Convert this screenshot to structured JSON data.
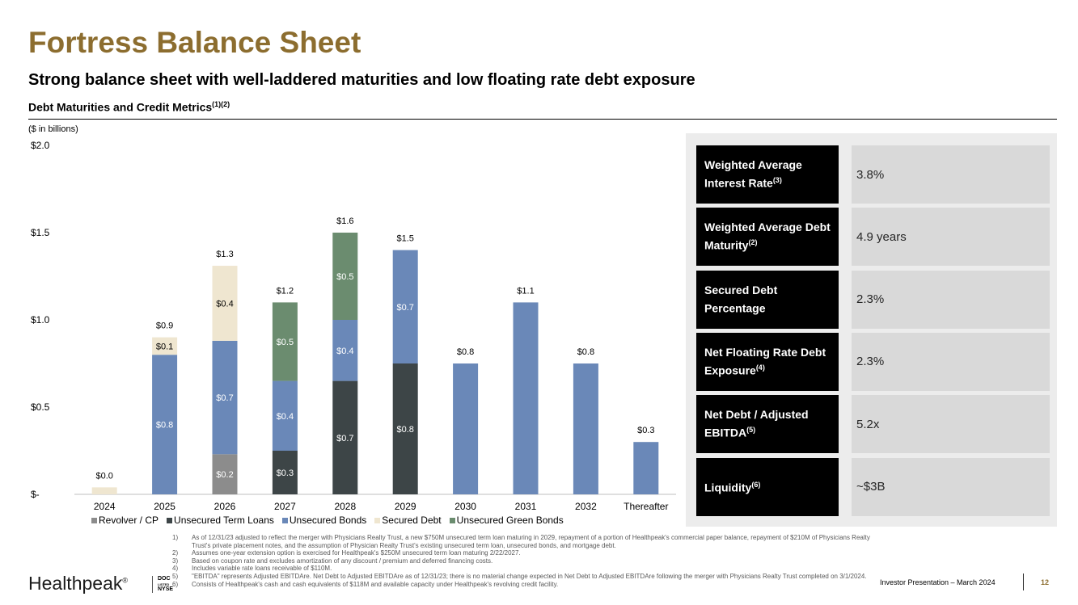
{
  "header": {
    "title": "Fortress Balance Sheet",
    "subtitle": "Strong balance sheet with well-laddered maturities and low floating rate debt exposure",
    "section": "Debt Maturities and Credit Metrics",
    "section_sup": "(1)(2)",
    "units": "($ in billions)"
  },
  "colors": {
    "accent": "#8c6d2f",
    "revolver": "#8c8c8c",
    "term_loans": "#3d4547",
    "bonds": "#6a88b8",
    "secured": "#efe6d0",
    "green_bonds": "#6b8c6f"
  },
  "chart_data": {
    "type": "bar",
    "stacked": true,
    "title": "Debt Maturities",
    "ylabel": "$ in billions",
    "ylim": [
      0,
      2.0
    ],
    "yticks": [
      {
        "value": 0,
        "label": "$-"
      },
      {
        "value": 0.5,
        "label": "$0.5"
      },
      {
        "value": 1.0,
        "label": "$1.0"
      },
      {
        "value": 1.5,
        "label": "$1.5"
      },
      {
        "value": 2.0,
        "label": "$2.0"
      }
    ],
    "categories": [
      "2024",
      "2025",
      "2026",
      "2027",
      "2028",
      "2029",
      "2030",
      "2031",
      "2032",
      "Thereafter"
    ],
    "totals": [
      "$0.0",
      "$0.9",
      "$1.3",
      "$1.2",
      "$1.6",
      "$1.5",
      "$0.8",
      "$1.1",
      "$0.8",
      "$0.3"
    ],
    "series": [
      {
        "name": "Revolver / CP",
        "color": "#8c8c8c",
        "values": [
          0,
          0,
          0.23,
          0,
          0,
          0,
          0,
          0,
          0,
          0
        ],
        "labels": [
          "",
          "",
          "$0.2",
          "",
          "",
          "",
          "",
          "",
          "",
          ""
        ]
      },
      {
        "name": "Unsecured Term Loans",
        "color": "#3d4547",
        "values": [
          0,
          0,
          0,
          0.25,
          0.65,
          0.75,
          0,
          0,
          0,
          0
        ],
        "labels": [
          "",
          "",
          "",
          "$0.3",
          "$0.7",
          "$0.8",
          "",
          "",
          "",
          ""
        ]
      },
      {
        "name": "Unsecured Bonds",
        "color": "#6a88b8",
        "values": [
          0,
          0.8,
          0.65,
          0.4,
          0.35,
          0.65,
          0.75,
          1.1,
          0.75,
          0.3
        ],
        "labels": [
          "",
          "$0.8",
          "$0.7",
          "$0.4",
          "$0.4",
          "$0.7",
          "",
          "",
          "",
          ""
        ]
      },
      {
        "name": "Secured Debt",
        "color": "#efe6d0",
        "values": [
          0.04,
          0.1,
          0.43,
          0,
          0,
          0,
          0,
          0,
          0,
          0
        ],
        "labels": [
          "",
          "$0.1",
          "$0.4",
          "",
          "",
          "",
          "",
          "",
          "",
          ""
        ]
      },
      {
        "name": "Unsecured Green Bonds",
        "color": "#6b8c6f",
        "values": [
          0,
          0,
          0,
          0.45,
          0.5,
          0,
          0,
          0,
          0,
          0
        ],
        "labels": [
          "",
          "",
          "",
          "$0.5",
          "$0.5",
          "",
          "",
          "",
          "",
          ""
        ]
      }
    ]
  },
  "metrics": [
    {
      "label": "Weighted Average Interest Rate",
      "sup": "(3)",
      "value": "3.8%"
    },
    {
      "label": "Weighted Average Debt Maturity",
      "sup": "(2)",
      "value": "4.9 years"
    },
    {
      "label": "Secured Debt Percentage",
      "sup": "",
      "value": "2.3%"
    },
    {
      "label": "Net Floating Rate Debt Exposure",
      "sup": "(4)",
      "value": "2.3%"
    },
    {
      "label": "Net Debt / Adjusted EBITDA",
      "sup": "(5)",
      "value": "5.2x"
    },
    {
      "label": "Liquidity",
      "sup": "(6)",
      "value": "~$3B"
    }
  ],
  "footnotes": [
    {
      "num": "1)",
      "text": "As of 12/31/23 adjusted to reflect the merger with Physicians Realty Trust, a new $750M unsecured term loan maturing in 2029, repayment of a portion of Healthpeak's commercial paper balance, repayment of $210M of Physicians Realty Trust's private placement notes, and the assumption of Physician Realty Trust's existing unsecured term loan, unsecured bonds, and mortgage debt."
    },
    {
      "num": "2)",
      "text": "Assumes one-year extension option is exercised for Healthpeak's $250M unsecured term loan maturing 2/22/2027."
    },
    {
      "num": "3)",
      "text": "Based on coupon rate and excludes amortization of any discount / premium and deferred financing costs."
    },
    {
      "num": "4)",
      "text": "Includes variable rate loans receivable of $110M."
    },
    {
      "num": "5)",
      "text": "\"EBITDA\" represents Adjusted EBITDAre. Net Debt to Adjusted EBITDAre as of 12/31/23; there is no material change expected in Net Debt to Adjusted EBITDAre following the merger with Physicians Realty Trust completed on 3/1/2024."
    },
    {
      "num": "6)",
      "text": "Consists of Healthpeak's cash and cash equivalents of $118M and available capacity under Healthpeak's revolving credit facility."
    }
  ],
  "footer": {
    "logo": "Healthpeak",
    "logo_mark": "®",
    "ticker_top": "DOC",
    "ticker_mid": "LISTED",
    "ticker_bottom": "NYSE",
    "presentation": "Investor Presentation – March 2024",
    "page": "12"
  }
}
